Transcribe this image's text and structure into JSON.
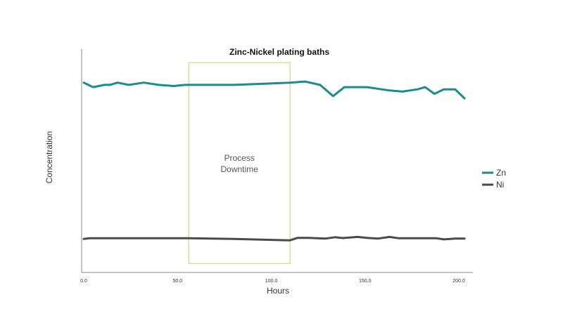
{
  "chart_data": {
    "type": "line",
    "title": "Zinc-Nickel plating baths",
    "xlabel": "Hours",
    "ylabel": "Concentration",
    "xlim": [
      0,
      210
    ],
    "ylim": [
      0,
      100
    ],
    "xticks": [
      0,
      50,
      100,
      150,
      200
    ],
    "xtick_labels": [
      "0.0",
      "50.0",
      "100.0",
      "150.0",
      "200.0"
    ],
    "yticks_visible": false,
    "grid": false,
    "legend_position": "right",
    "annotation": {
      "label_line1": "Process",
      "label_line2": "Downtime",
      "x_start": 56,
      "x_end": 110,
      "y_bottom": 4,
      "y_top": 94
    },
    "series": [
      {
        "name": "Zn",
        "color": "#1a8c8c",
        "x": [
          0,
          5,
          11,
          14,
          18,
          24,
          32,
          40,
          48,
          54,
          62,
          80,
          96,
          110,
          118,
          126,
          133,
          139,
          151,
          163,
          170,
          178,
          182,
          187,
          192,
          198,
          203
        ],
        "y": [
          85,
          83,
          84,
          84,
          85,
          84,
          85,
          84,
          83.5,
          84,
          84,
          84,
          84.5,
          85,
          85.5,
          84,
          79,
          83,
          83,
          81.5,
          81,
          82,
          83,
          80,
          82,
          82,
          78
        ]
      },
      {
        "name": "Ni",
        "color": "#4a4a4a",
        "x": [
          0,
          3,
          20,
          56,
          80,
          100,
          110,
          114,
          120,
          129,
          134,
          138,
          146,
          151,
          157,
          163,
          168,
          177,
          188,
          192,
          198,
          203
        ],
        "y": [
          15,
          15.3,
          15.3,
          15.3,
          15,
          14.6,
          14.4,
          15.5,
          15.5,
          15.2,
          15.8,
          15.4,
          15.9,
          15.5,
          15.2,
          15.9,
          15.3,
          15.3,
          15.3,
          14.8,
          15.2,
          15.2
        ]
      }
    ]
  }
}
